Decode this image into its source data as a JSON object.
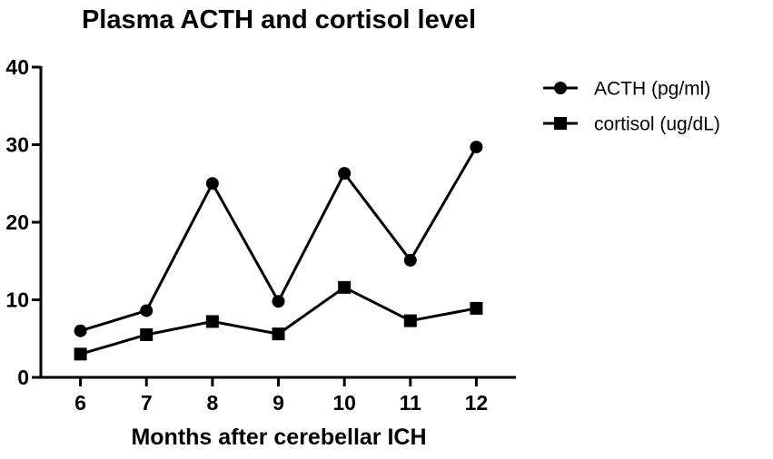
{
  "chart_data": {
    "type": "line",
    "title": "Plasma ACTH and cortisol level",
    "xlabel": "Months after cerebellar ICH",
    "ylabel": "",
    "x": [
      6,
      7,
      8,
      9,
      10,
      11,
      12
    ],
    "xlim": [
      5.4,
      12.6
    ],
    "ylim": [
      0,
      40
    ],
    "yticks": [
      0,
      10,
      20,
      30,
      40
    ],
    "grid": false,
    "legend_position": "top-right",
    "series": [
      {
        "name": "ACTH (pg/ml)",
        "marker": "circle",
        "color": "#000000",
        "values": [
          6.0,
          8.6,
          25.0,
          9.8,
          26.3,
          15.1,
          29.7
        ]
      },
      {
        "name": "cortisol (ug/dL)",
        "marker": "square",
        "color": "#000000",
        "values": [
          3.0,
          5.5,
          7.2,
          5.6,
          11.6,
          7.3,
          8.9
        ]
      }
    ]
  }
}
